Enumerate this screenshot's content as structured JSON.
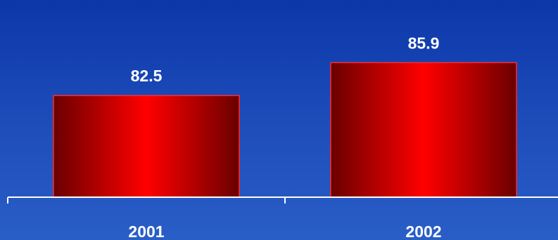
{
  "chart_data": {
    "type": "bar",
    "categories": [
      "2001",
      "2002"
    ],
    "values": [
      82.5,
      85.9
    ],
    "data_labels": [
      "82.5",
      "85.9"
    ],
    "title": "",
    "xlabel": "",
    "ylabel": "",
    "grid": false,
    "legend": "none"
  },
  "colors": {
    "background_top": "#0c37a9",
    "background_bottom": "#2a5ec7",
    "bar_edge": "#6a0000",
    "bar_center": "#ff0000",
    "bar_outline": "#ff2a2a",
    "axis": "#ffffff",
    "text": "#ffffff"
  }
}
